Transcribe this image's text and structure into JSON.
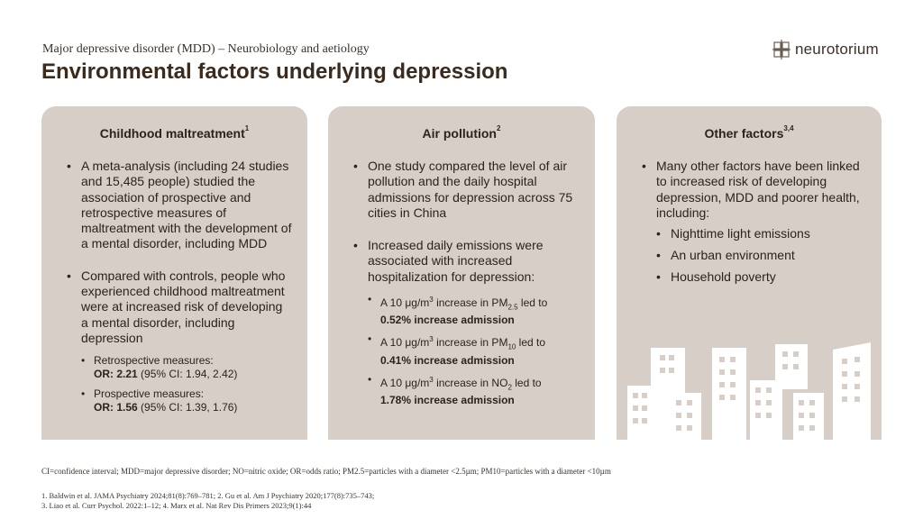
{
  "header": {
    "subtitle": "Major depressive disorder (MDD) – Neurobiology and aetiology",
    "title": "Environmental factors underlying depression",
    "logo_text": "neurotorium"
  },
  "cards": [
    {
      "title": "Childhood maltreatment",
      "title_sup": "1",
      "bullets": [
        "A meta-analysis (including 24 studies and 15,485 people) studied the association of prospective and retrospective measures of maltreatment with the development of a mental disorder, including MDD",
        "Compared with controls, people who experienced childhood maltreatment were at increased risk of developing a mental disorder, including depression"
      ],
      "subbullets": [
        {
          "label": "Retrospective measures:",
          "bold": "OR: 2.21",
          "rest": " (95% CI: 1.94, 2.42)"
        },
        {
          "label": "Prospective measures:",
          "bold": "OR: 1.56",
          "rest": " (95% CI: 1.39, 1.76)"
        }
      ]
    },
    {
      "title": "Air pollution",
      "title_sup": "2",
      "bullets": [
        "One study compared the level of air pollution and the daily hospital admissions for depression across 75 cities in China",
        "Increased daily emissions were associated with increased hospitalization for depression:"
      ],
      "subbullets": [
        {
          "pre": "A 10 μg/m",
          "sup": "3",
          "mid": " increase in PM",
          "sub": "2.5",
          "post": " led to",
          "bold": "0.52% increase admission"
        },
        {
          "pre": "A 10 μg/m",
          "sup": "3",
          "mid": " increase in PM",
          "sub": "10",
          "post": " led to",
          "bold": "0.41% increase admission"
        },
        {
          "pre": "A 10 μg/m",
          "sup": "3",
          "mid": " increase in NO",
          "sub": "2",
          "post": " led to",
          "bold": "1.78% increase admission"
        }
      ]
    },
    {
      "title": "Other factors",
      "title_sup": "3,4",
      "bullets": [
        "Many other factors have been linked to increased risk of developing depression, MDD and poorer health, including:"
      ],
      "subbullets": [
        "Nighttime light emissions",
        "An urban environment",
        "Household poverty"
      ]
    }
  ],
  "footer": {
    "abbreviations": "CI=confidence interval; MDD=major depressive disorder; NO=nitric oxide; OR=odds ratio; PM2.5=particles with a diameter <2.5µm; PM10=particles with a diameter <10µm",
    "references": [
      "1. Baldwin et al. JAMA Psychiatry 2024;81(8):769–781; 2. Gu et al. Am J Psychiatry 2020;177(8):735–743;",
      "3. Liao et al. Curr Psychol. 2022:1–12; 4. Marx et al. Nat Rev Dis Primers 2023;9(1):44"
    ]
  },
  "colors": {
    "card_bg": "#d6cec7",
    "title": "#3b2a1e",
    "city": "#ffffff"
  },
  "icons": [
    "neurotorium-logo-icon",
    "city-buildings-icon"
  ]
}
